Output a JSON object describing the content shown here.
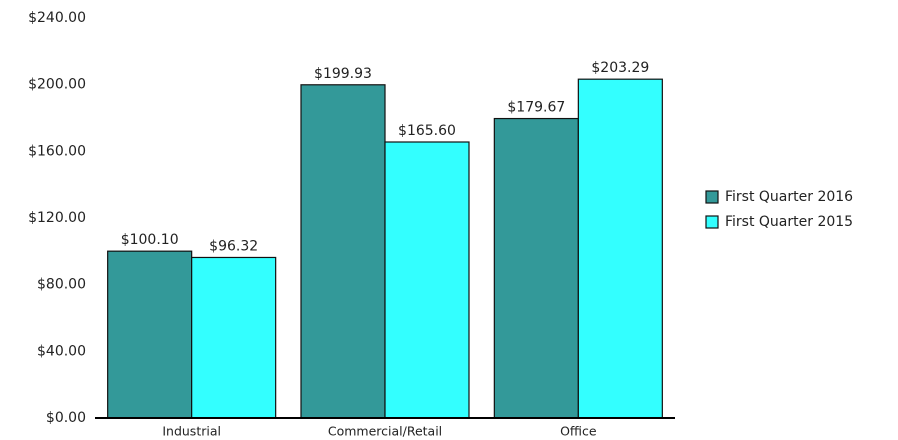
{
  "chart_data": {
    "type": "bar",
    "categories": [
      "Industrial",
      "Commercial/Retail",
      "Office"
    ],
    "series": [
      {
        "name": "First Quarter 2016",
        "color": "#339999",
        "values": [
          100.1,
          199.93,
          179.67
        ],
        "value_labels": [
          "$100.10",
          "$199.93",
          "$179.67"
        ]
      },
      {
        "name": "First Quarter 2015",
        "color": "#33ffff",
        "values": [
          96.32,
          165.6,
          203.29
        ],
        "value_labels": [
          "$96.32",
          "$165.60",
          "$203.29"
        ]
      }
    ],
    "ylim": [
      0,
      240
    ],
    "yticks": [
      {
        "value": 0,
        "label": "$0.00"
      },
      {
        "value": 40,
        "label": "$40.00"
      },
      {
        "value": 80,
        "label": "$80.00"
      },
      {
        "value": 120,
        "label": "$120.00"
      },
      {
        "value": 160,
        "label": "$160.00"
      },
      {
        "value": 200,
        "label": "$200.00"
      },
      {
        "value": 240,
        "label": "$240.00"
      }
    ],
    "grid": false,
    "legend": "right"
  }
}
